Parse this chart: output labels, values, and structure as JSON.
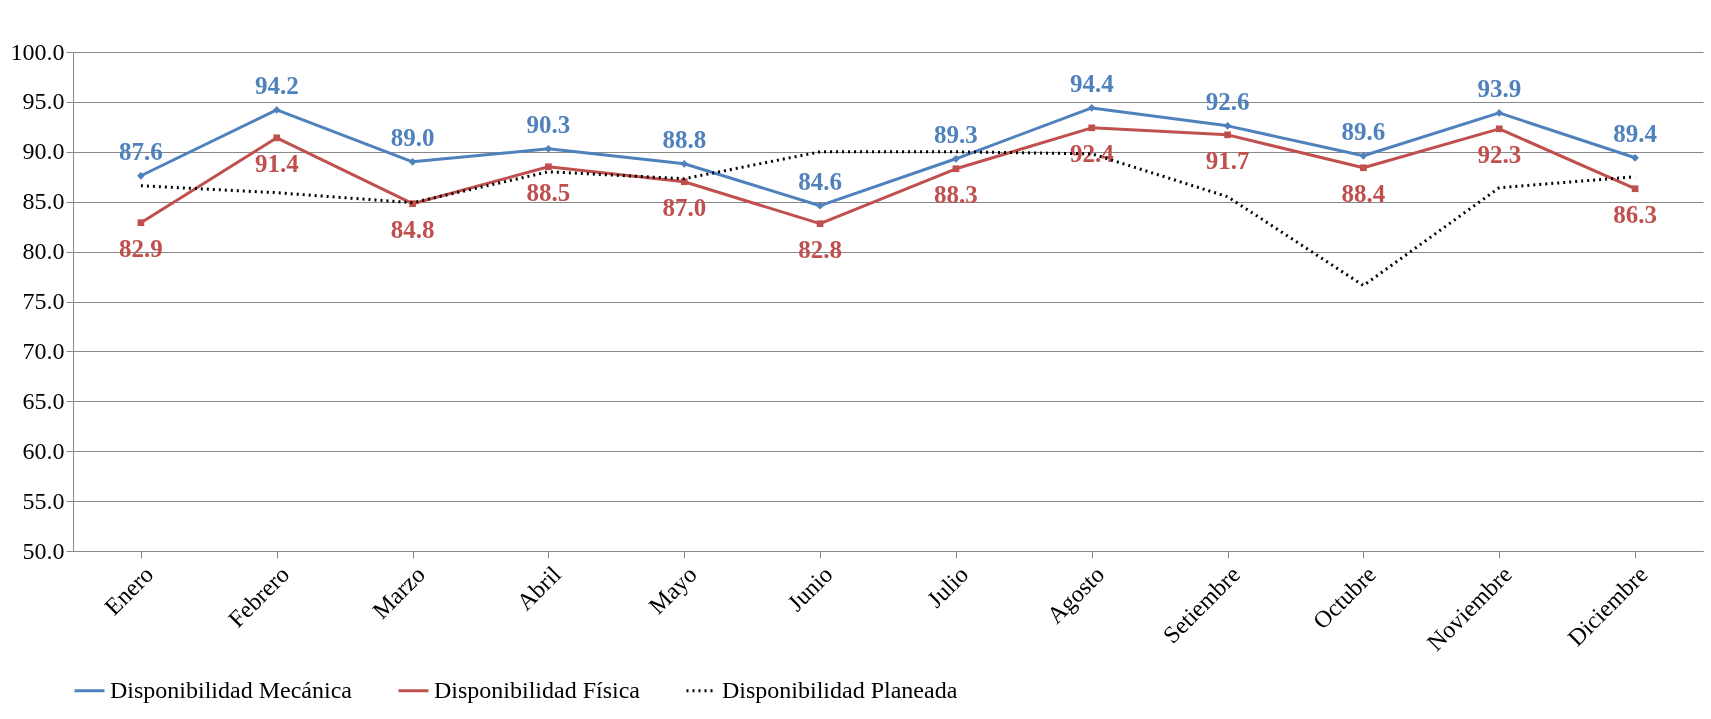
{
  "chart_data": {
    "type": "line",
    "categories": [
      "Enero",
      "Febrero",
      "Marzo",
      "Abril",
      "Mayo",
      "Junio",
      "Julio",
      "Agosto",
      "Setiembre",
      "Octubre",
      "Noviembre",
      "Diciembre"
    ],
    "series": [
      {
        "name": "Disponibilidad Mecánica",
        "color": "#4f81bd",
        "marker": "diamond",
        "line_style": "solid",
        "values": [
          87.6,
          94.2,
          89.0,
          90.3,
          88.8,
          84.6,
          89.3,
          94.4,
          92.6,
          89.6,
          93.9,
          89.4
        ],
        "value_labels": [
          "87.6",
          "94.2",
          "89.0",
          "90.3",
          "88.8",
          "84.6",
          "89.3",
          "94.4",
          "92.6",
          "89.6",
          "93.9",
          "89.4"
        ]
      },
      {
        "name": "Disponibilidad Física",
        "color": "#c0504d",
        "marker": "square",
        "line_style": "solid",
        "values": [
          82.9,
          91.4,
          84.8,
          88.5,
          87.0,
          82.8,
          88.3,
          92.4,
          91.7,
          88.4,
          92.3,
          86.3
        ],
        "value_labels": [
          "82.9",
          "91.4",
          "84.8",
          "88.5",
          "87.0",
          "82.8",
          "88.3",
          "92.4",
          "91.7",
          "88.4",
          "92.3",
          "86.3"
        ]
      },
      {
        "name": "Disponibilidad Planeada",
        "color": "#000000",
        "marker": "none",
        "line_style": "dotted",
        "values": [
          86.6,
          85.9,
          84.9,
          88.0,
          87.3,
          90.0,
          90.0,
          89.8,
          85.5,
          76.6,
          86.4,
          87.5
        ]
      }
    ],
    "ylim": [
      50,
      100
    ],
    "yticks": [
      {
        "value": 50,
        "label": "50.0"
      },
      {
        "value": 55,
        "label": "55.0"
      },
      {
        "value": 60,
        "label": "60.0"
      },
      {
        "value": 65,
        "label": "65.0"
      },
      {
        "value": 70,
        "label": "70.0"
      },
      {
        "value": 75,
        "label": "75.0"
      },
      {
        "value": 80,
        "label": "80.0"
      },
      {
        "value": 85,
        "label": "85.0"
      },
      {
        "value": 90,
        "label": "90.0"
      },
      {
        "value": 95,
        "label": "95.0"
      },
      {
        "value": 100,
        "label": "100.0"
      }
    ],
    "grid": "y",
    "legend": "bottom"
  }
}
